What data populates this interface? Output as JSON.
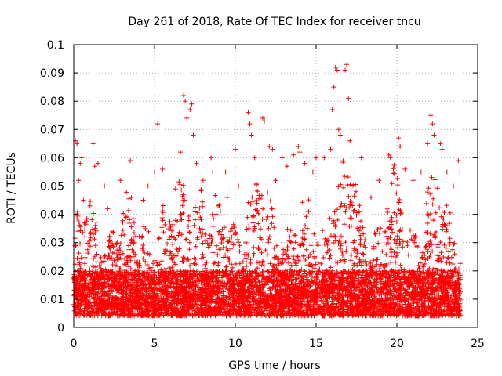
{
  "chart_data": {
    "type": "scatter",
    "title": "Day 261 of 2018, Rate Of TEC Index for receiver tncu",
    "xlabel": "GPS time / hours",
    "ylabel": "ROTI / TECUs",
    "xlim": [
      0,
      25
    ],
    "ylim": [
      0,
      0.1
    ],
    "xticks": [
      "0",
      "5",
      "10",
      "15",
      "20",
      "25"
    ],
    "yticks": [
      "0",
      "0.01",
      "0.02",
      "0.03",
      "0.04",
      "0.05",
      "0.06",
      "0.07",
      "0.08",
      "0.09",
      "0.1"
    ],
    "grid": true,
    "marker": "+",
    "color": "#ff0000",
    "series": [
      {
        "points": [
          [
            0.1,
            0.066
          ],
          [
            0.2,
            0.065
          ],
          [
            0.3,
            0.052
          ],
          [
            0.4,
            0.058
          ],
          [
            0.5,
            0.06
          ],
          [
            0.6,
            0.045
          ],
          [
            1.2,
            0.065
          ],
          [
            1.3,
            0.057
          ],
          [
            1.5,
            0.058
          ],
          [
            1.9,
            0.05
          ],
          [
            2.1,
            0.042
          ],
          [
            2.9,
            0.052
          ],
          [
            3.5,
            0.059
          ],
          [
            4.3,
            0.045
          ],
          [
            4.6,
            0.05
          ],
          [
            5.0,
            0.055
          ],
          [
            5.2,
            0.072
          ],
          [
            5.5,
            0.056
          ],
          [
            6.3,
            0.049
          ],
          [
            6.6,
            0.062
          ],
          [
            6.8,
            0.082
          ],
          [
            6.9,
            0.08
          ],
          [
            7.0,
            0.074
          ],
          [
            7.2,
            0.077
          ],
          [
            7.3,
            0.079
          ],
          [
            7.4,
            0.068
          ],
          [
            7.6,
            0.058
          ],
          [
            8.0,
            0.052
          ],
          [
            8.5,
            0.06
          ],
          [
            8.6,
            0.055
          ],
          [
            9.4,
            0.055
          ],
          [
            9.5,
            0.046
          ],
          [
            10.0,
            0.063
          ],
          [
            10.2,
            0.05
          ],
          [
            10.8,
            0.076
          ],
          [
            10.9,
            0.072
          ],
          [
            11.0,
            0.068
          ],
          [
            11.2,
            0.06
          ],
          [
            11.7,
            0.074
          ],
          [
            11.8,
            0.073
          ],
          [
            12.1,
            0.064
          ],
          [
            12.3,
            0.063
          ],
          [
            12.5,
            0.052
          ],
          [
            12.9,
            0.06
          ],
          [
            13.2,
            0.057
          ],
          [
            13.6,
            0.061
          ],
          [
            13.9,
            0.064
          ],
          [
            14.0,
            0.062
          ],
          [
            14.3,
            0.058
          ],
          [
            14.8,
            0.055
          ],
          [
            15.0,
            0.06
          ],
          [
            15.5,
            0.06
          ],
          [
            15.9,
            0.063
          ],
          [
            16.0,
            0.077
          ],
          [
            16.1,
            0.085
          ],
          [
            16.2,
            0.092
          ],
          [
            16.3,
            0.091
          ],
          [
            16.4,
            0.07
          ],
          [
            16.5,
            0.068
          ],
          [
            16.8,
            0.091
          ],
          [
            16.9,
            0.093
          ],
          [
            17.0,
            0.081
          ],
          [
            17.1,
            0.066
          ],
          [
            17.4,
            0.055
          ],
          [
            17.8,
            0.06
          ],
          [
            18.4,
            0.046
          ],
          [
            18.9,
            0.052
          ],
          [
            19.5,
            0.061
          ],
          [
            19.6,
            0.06
          ],
          [
            20.1,
            0.067
          ],
          [
            20.2,
            0.064
          ],
          [
            20.5,
            0.056
          ],
          [
            21.0,
            0.052
          ],
          [
            21.5,
            0.055
          ],
          [
            21.9,
            0.065
          ],
          [
            22.1,
            0.075
          ],
          [
            22.2,
            0.072
          ],
          [
            22.3,
            0.068
          ],
          [
            22.7,
            0.065
          ],
          [
            22.8,
            0.063
          ],
          [
            23.1,
            0.055
          ],
          [
            23.5,
            0.05
          ],
          [
            23.8,
            0.059
          ],
          [
            23.9,
            0.055
          ]
        ]
      }
    ]
  }
}
